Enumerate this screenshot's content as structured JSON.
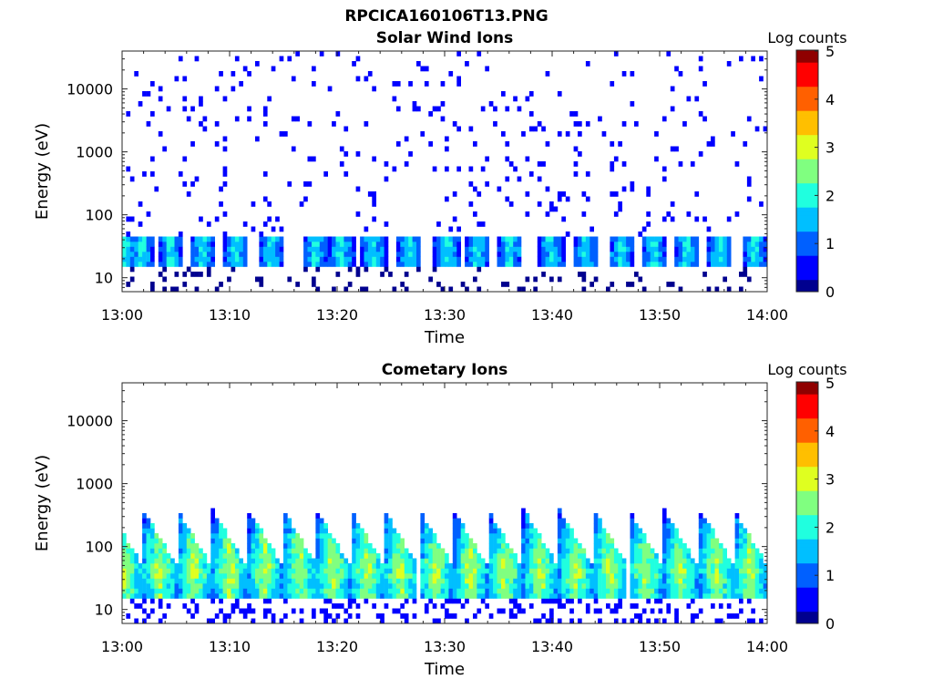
{
  "figure": {
    "title": "RPCICA160106T13.PNG"
  },
  "colorscale": [
    "#00008f",
    "#0000ff",
    "#0060ff",
    "#00bfff",
    "#20ffdf",
    "#80ff80",
    "#dfff20",
    "#ffbf00",
    "#ff6000",
    "#ff0000",
    "#8f0000"
  ],
  "chart_data": [
    {
      "type": "heatmap",
      "title": "Solar Wind Ions",
      "xlabel": "Time",
      "ylabel": "Energy (eV)",
      "xticks": [
        "13:00",
        "13:10",
        "13:20",
        "13:30",
        "13:40",
        "13:50",
        "14:00"
      ],
      "yticks": [
        "10",
        "100",
        "1000",
        "10000"
      ],
      "xlim": [
        "13:00",
        "14:00"
      ],
      "ylim": [
        6,
        40000
      ],
      "yscale": "log",
      "colorbar": {
        "label": "Log counts",
        "ticks": [
          "0",
          "1",
          "2",
          "3",
          "4",
          "5"
        ],
        "range": [
          0,
          5
        ]
      },
      "bursts_minutes": [
        0.3,
        1.8,
        4.5,
        7.5,
        10.6,
        13.8,
        17.9,
        20.4,
        23.4,
        26.7,
        30.2,
        33.1,
        36.1,
        39.9,
        43.1,
        46.4,
        49.5,
        52.6,
        55.6,
        58.8
      ],
      "features": {
        "low_energy_band_eV": [
          15,
          45
        ],
        "peak_log_counts": 2.0,
        "background_log_counts": [
          0,
          0.5
        ]
      }
    },
    {
      "type": "heatmap",
      "title": "Cometary Ions",
      "xlabel": "Time",
      "ylabel": "Energy (eV)",
      "xticks": [
        "13:00",
        "13:10",
        "13:20",
        "13:30",
        "13:40",
        "13:50",
        "14:00"
      ],
      "yticks": [
        "10",
        "100",
        "1000",
        "10000"
      ],
      "xlim": [
        "13:00",
        "14:00"
      ],
      "ylim": [
        6,
        40000
      ],
      "yscale": "log",
      "colorbar": {
        "label": "Log counts",
        "ticks": [
          "0",
          "1",
          "2",
          "3",
          "4",
          "5"
        ],
        "range": [
          0,
          5
        ]
      },
      "bursts_minutes": [
        0.3,
        3.5,
        6.7,
        10.0,
        13.3,
        16.5,
        19.6,
        22.8,
        25.9,
        29.2,
        32.4,
        35.6,
        38.9,
        42.2,
        45.4,
        48.7,
        52.0,
        55.3,
        58.4
      ],
      "features": {
        "dispersion_energy_eV": [
          30,
          400
        ],
        "peak_log_counts": 2.8,
        "background_log_counts": [
          0,
          0.5
        ]
      }
    }
  ]
}
